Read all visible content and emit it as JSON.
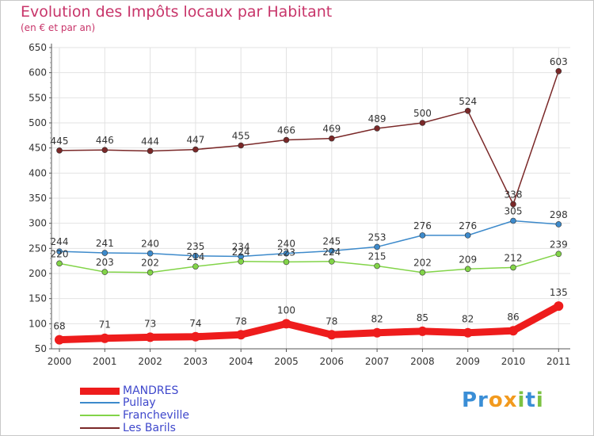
{
  "chart_data": {
    "type": "line",
    "title": "Evolution des Impôts locaux par Habitant",
    "subtitle": "(en € et par an)",
    "xlabel": "",
    "ylabel": "",
    "ylim": [
      50,
      650
    ],
    "yticks": [
      "50",
      "100",
      "150",
      "200",
      "250",
      "300",
      "350",
      "400",
      "450",
      "500",
      "550",
      "600",
      "650"
    ],
    "categories": [
      "2000",
      "2001",
      "2002",
      "2003",
      "2004",
      "2005",
      "2006",
      "2007",
      "2008",
      "2009",
      "2010",
      "2011"
    ],
    "grid": true,
    "series": [
      {
        "name": "Les Barils",
        "color": "#7a2828",
        "values": [
          445,
          446,
          444,
          447,
          455,
          466,
          469,
          489,
          500,
          524,
          338,
          603
        ],
        "labels": [
          "445",
          "446",
          "444",
          "447",
          "455",
          "466",
          "469",
          "489",
          "500",
          "524",
          "338",
          "603"
        ]
      },
      {
        "name": "Pullay",
        "color": "#3d8acb",
        "values": [
          244,
          241,
          240,
          235,
          234,
          240,
          245,
          253,
          276,
          276,
          305,
          298
        ],
        "labels": [
          "244",
          "241",
          "240",
          "235",
          "234",
          "240",
          "245",
          "253",
          "276",
          "276",
          "305",
          "298"
        ]
      },
      {
        "name": "Francheville",
        "color": "#82d448",
        "values": [
          220,
          203,
          202,
          214,
          224,
          223,
          224,
          215,
          202,
          209,
          212,
          239
        ],
        "labels": [
          "220",
          "203",
          "202",
          "214",
          "224",
          "223",
          "224",
          "215",
          "202",
          "209",
          "212",
          "239"
        ]
      },
      {
        "name": "MANDRES",
        "color": "#ee1c1c",
        "values": [
          68,
          71,
          73,
          74,
          78,
          100,
          78,
          82,
          85,
          82,
          86,
          135
        ],
        "labels": [
          "68",
          "71",
          "73",
          "74",
          "78",
          "100",
          "78",
          "82",
          "85",
          "82",
          "86",
          "135"
        ]
      }
    ],
    "legend": [
      "MANDRES",
      "Pullay",
      "Francheville",
      "Les Barils"
    ]
  },
  "logo": {
    "text_parts": [
      "Pr",
      "o",
      "x",
      "i",
      "t",
      "i"
    ],
    "colors": [
      "#3a8ed6",
      "#f29a1e",
      "#f29a1e",
      "#7cc242",
      "#3a8ed6",
      "#7cc242"
    ]
  }
}
